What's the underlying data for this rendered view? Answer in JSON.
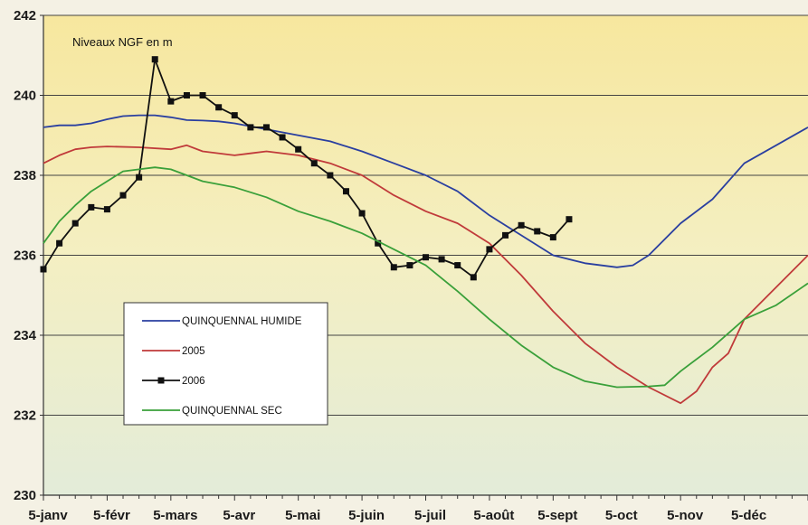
{
  "chart_data": {
    "type": "line",
    "title": "",
    "xlabel": "",
    "ylabel": "",
    "annotation": "Niveaux NGF en m",
    "ylim": [
      230,
      242
    ],
    "xlim": [
      0,
      12
    ],
    "yticks": [
      230,
      232,
      234,
      236,
      238,
      240,
      242
    ],
    "categories": [
      "5-janv",
      "5-févr",
      "5-mars",
      "5-avr",
      "5-mai",
      "5-juin",
      "5-juil",
      "5-août",
      "5-sept",
      "5-oct",
      "5-nov",
      "5-déc"
    ],
    "grid": true,
    "legend": {
      "position": "lower-left"
    },
    "series": [
      {
        "name": "QUINQUENNAL HUMIDE",
        "color": "#2a3fa0",
        "marker": "none",
        "x": [
          0,
          0.25,
          0.5,
          0.75,
          1,
          1.25,
          1.5,
          1.75,
          2,
          2.25,
          2.5,
          2.75,
          3,
          3.5,
          4,
          4.5,
          5,
          5.5,
          6,
          6.5,
          7,
          7.5,
          8,
          8.5,
          9,
          9.25,
          9.5,
          10,
          10.5,
          11,
          11.5,
          12
        ],
        "y": [
          239.2,
          239.25,
          239.25,
          239.3,
          239.4,
          239.48,
          239.5,
          239.5,
          239.45,
          239.38,
          239.37,
          239.35,
          239.3,
          239.15,
          239.0,
          238.85,
          238.6,
          238.3,
          238.0,
          237.6,
          237.0,
          236.5,
          236.0,
          235.8,
          235.7,
          235.75,
          236.0,
          236.8,
          237.4,
          238.3,
          238.75,
          239.2
        ]
      },
      {
        "name": "2005",
        "color": "#c03a3a",
        "marker": "none",
        "x": [
          0,
          0.25,
          0.5,
          0.75,
          1,
          1.5,
          2,
          2.25,
          2.5,
          3,
          3.25,
          3.5,
          4,
          4.5,
          5,
          5.5,
          6,
          6.5,
          7,
          7.5,
          8,
          8.5,
          9,
          9.5,
          10,
          10.25,
          10.5,
          10.75,
          11,
          11.5,
          12
        ],
        "y": [
          238.3,
          238.5,
          238.65,
          238.7,
          238.72,
          238.7,
          238.65,
          238.75,
          238.6,
          238.5,
          238.55,
          238.6,
          238.5,
          238.3,
          238.0,
          237.5,
          237.1,
          236.8,
          236.3,
          235.5,
          234.6,
          233.8,
          233.2,
          232.7,
          232.3,
          232.6,
          233.2,
          233.55,
          234.4,
          235.2,
          236.0
        ]
      },
      {
        "name": "2006",
        "color": "#111111",
        "marker": "square",
        "x": [
          0,
          0.25,
          0.5,
          0.75,
          1,
          1.25,
          1.5,
          1.75,
          2,
          2.25,
          2.5,
          2.75,
          3,
          3.25,
          3.5,
          3.75,
          4,
          4.25,
          4.5,
          4.75,
          5,
          5.25,
          5.5,
          5.75,
          6,
          6.25,
          6.5,
          6.75,
          7,
          7.25,
          7.5,
          7.75,
          8,
          8.25,
          8.5,
          8.75,
          9,
          9.25,
          9.5
        ],
        "y": [
          235.65,
          236.3,
          236.8,
          237.2,
          237.15,
          237.5,
          237.95,
          240.9,
          239.85,
          240.0,
          240.0,
          239.7,
          239.5,
          239.2,
          239.2,
          238.95,
          238.65,
          238.3,
          238.0,
          237.6,
          237.05,
          236.3,
          235.7,
          235.75,
          235.95,
          235.9,
          235.75,
          235.45,
          236.15,
          236.5,
          236.75,
          236.6,
          236.45,
          236.9,
          null,
          null,
          null,
          null,
          null
        ]
      },
      {
        "name": "QUINQUENNAL SEC",
        "color": "#3aa03a",
        "marker": "none",
        "x": [
          0,
          0.25,
          0.5,
          0.75,
          1,
          1.25,
          1.5,
          1.75,
          2,
          2.25,
          2.5,
          3,
          3.5,
          4,
          4.5,
          5,
          5.5,
          6,
          6.5,
          7,
          7.5,
          8,
          8.5,
          9,
          9.5,
          9.75,
          10,
          10.5,
          11,
          11.5,
          12
        ],
        "y": [
          236.3,
          236.85,
          237.25,
          237.6,
          237.85,
          238.1,
          238.15,
          238.2,
          238.15,
          238.0,
          237.85,
          237.7,
          237.45,
          237.1,
          236.85,
          236.55,
          236.15,
          235.75,
          235.1,
          234.4,
          233.75,
          233.2,
          232.85,
          232.7,
          232.72,
          232.75,
          233.1,
          233.7,
          234.4,
          234.75,
          235.3
        ]
      }
    ]
  }
}
